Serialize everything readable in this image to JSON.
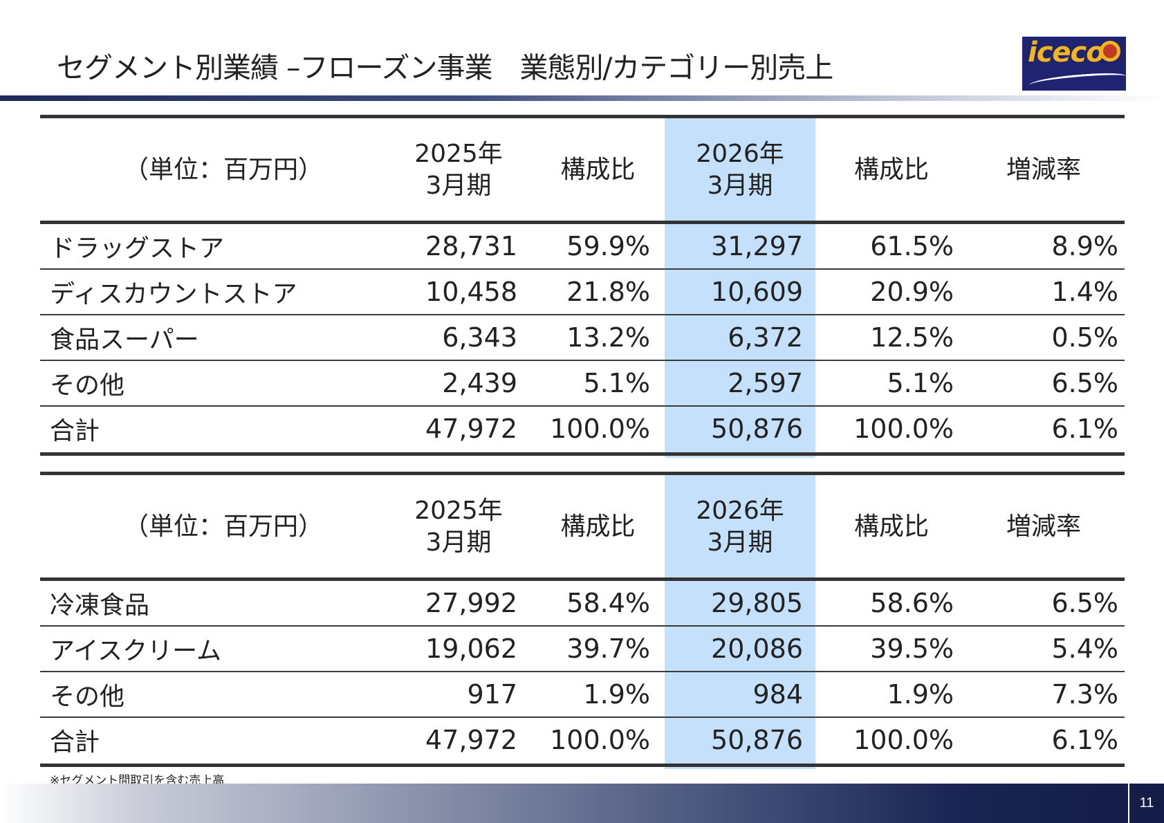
{
  "title": "セグメント別業績 –フローズン事業　業態別/カテゴリー別売上",
  "logo": {
    "text": "iceco"
  },
  "tables": [
    {
      "header": {
        "unit": "（単位：百万円）",
        "fy2025_line1": "2025年",
        "fy2025_line2": "3月期",
        "ratio1": "構成比",
        "fy2026_line1": "2026年",
        "fy2026_line2": "3月期",
        "ratio2": "構成比",
        "change": "増減率"
      },
      "rows": [
        {
          "label": "ドラッグストア",
          "v2025": "28,731",
          "r2025": "59.9%",
          "v2026": "31,297",
          "r2026": "61.5%",
          "chg": "8.9%"
        },
        {
          "label": "ディスカウントストア",
          "v2025": "10,458",
          "r2025": "21.8%",
          "v2026": "10,609",
          "r2026": "20.9%",
          "chg": "1.4%"
        },
        {
          "label": "食品スーパー",
          "v2025": "6,343",
          "r2025": "13.2%",
          "v2026": "6,372",
          "r2026": "12.5%",
          "chg": "0.5%"
        },
        {
          "label": "その他",
          "v2025": "2,439",
          "r2025": "5.1%",
          "v2026": "2,597",
          "r2026": "5.1%",
          "chg": "6.5%"
        },
        {
          "label": "合計",
          "v2025": "47,972",
          "r2025": "100.0%",
          "v2026": "50,876",
          "r2026": "100.0%",
          "chg": "6.1%"
        }
      ]
    },
    {
      "header": {
        "unit": "（単位：百万円）",
        "fy2025_line1": "2025年",
        "fy2025_line2": "3月期",
        "ratio1": "構成比",
        "fy2026_line1": "2026年",
        "fy2026_line2": "3月期",
        "ratio2": "構成比",
        "change": "増減率"
      },
      "rows": [
        {
          "label": "冷凍食品",
          "v2025": "27,992",
          "r2025": "58.4%",
          "v2026": "29,805",
          "r2026": "58.6%",
          "chg": "6.5%"
        },
        {
          "label": "アイスクリーム",
          "v2025": "19,062",
          "r2025": "39.7%",
          "v2026": "20,086",
          "r2026": "39.5%",
          "chg": "5.4%"
        },
        {
          "label": "その他",
          "v2025": "917",
          "r2025": "1.9%",
          "v2026": "984",
          "r2026": "1.9%",
          "chg": "7.3%"
        },
        {
          "label": "合計",
          "v2025": "47,972",
          "r2025": "100.0%",
          "v2026": "50,876",
          "r2026": "100.0%",
          "chg": "6.1%"
        }
      ]
    }
  ],
  "note": "※セグメント間取引を含む売上高",
  "page_number": "11",
  "colors": {
    "highlight_column": "#c5e0fb",
    "navy": "#1b2a5a",
    "logo_bg": "#1f2370",
    "logo_text": "#f2b51c"
  }
}
